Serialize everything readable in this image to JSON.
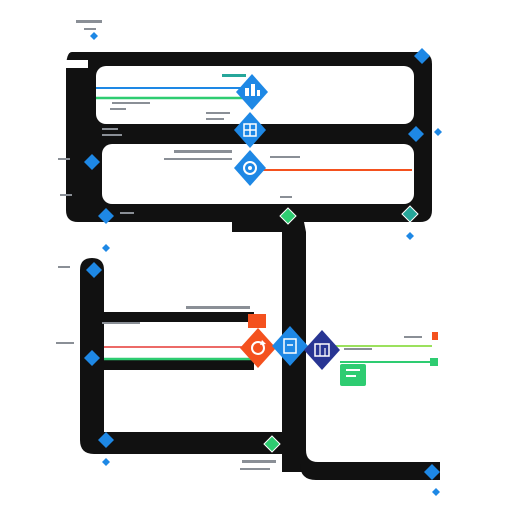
{
  "diagram": {
    "colors": {
      "track": "#111111",
      "panel": "#ffffff",
      "blue": "#1e88e5",
      "blue_dark": "#1565c0",
      "navy": "#283593",
      "orange": "#f4511e",
      "green": "#2ecc71",
      "green_dark": "#1e9e57",
      "teal": "#26a69a",
      "red": "#e53935",
      "gray": "#9aa0a6",
      "label": "#8a8f96"
    },
    "icons": {
      "hub_top": "chart-icon",
      "hub_mid": "grid-icon",
      "hub_low": "gear-icon",
      "hub_orange": "refresh-icon",
      "hub_blue": "clipboard-icon",
      "hub_navy": "bar-chart-icon",
      "edge_marker": "diamond-icon",
      "green_tag": "tag-icon"
    },
    "unreadable_text_note": ""
  }
}
